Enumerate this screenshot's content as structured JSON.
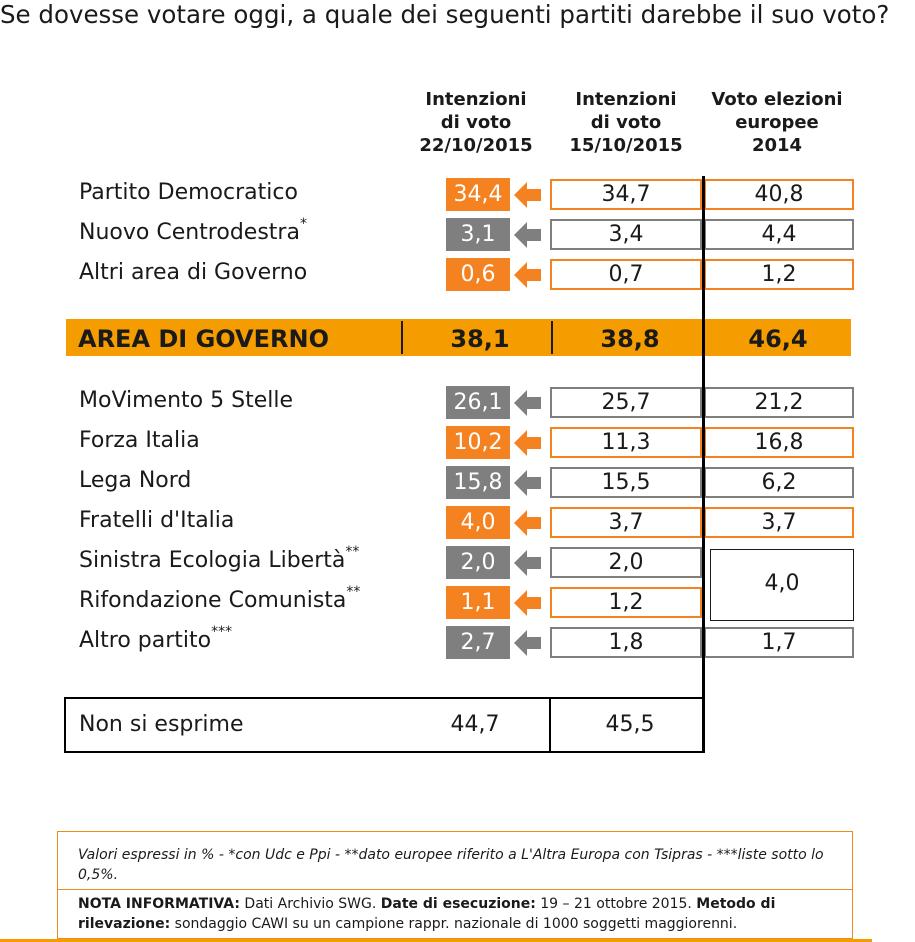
{
  "title": "Se dovesse votare oggi, a quale dei seguenti partiti darebbe il suo voto?",
  "headers": {
    "col1": [
      "Intenzioni",
      "di voto",
      "22/10/2015"
    ],
    "col2": [
      "Intenzioni",
      "di voto",
      "15/10/2015"
    ],
    "col3": [
      "Voto elezioni",
      "europee",
      "2014"
    ]
  },
  "colors": {
    "orange": "#f58220",
    "gray": "#7f7f7f",
    "band": "#f59c00"
  },
  "chart_data": {
    "type": "table",
    "columns": [
      "Intenzioni di voto 22/10/2015",
      "Intenzioni di voto 15/10/2015",
      "Voto elezioni europee 2014"
    ],
    "rows": [
      {
        "party": "Partito Democratico",
        "sup": "",
        "current": "34,4",
        "previous": "34,7",
        "europee": "40,8",
        "trend": "down"
      },
      {
        "party": "Nuovo Centrodestra",
        "sup": "*",
        "current": "3,1",
        "previous": "3,4",
        "europee": "4,4",
        "trend": "same"
      },
      {
        "party": "Altri area di Governo",
        "sup": "",
        "current": "0,6",
        "previous": "0,7",
        "europee": "1,2",
        "trend": "down"
      },
      {
        "party": "MoVimento 5 Stelle",
        "sup": "",
        "current": "26,1",
        "previous": "25,7",
        "europee": "21,2",
        "trend": "same"
      },
      {
        "party": "Forza Italia",
        "sup": "",
        "current": "10,2",
        "previous": "11,3",
        "europee": "16,8",
        "trend": "down"
      },
      {
        "party": "Lega Nord",
        "sup": "",
        "current": "15,8",
        "previous": "15,5",
        "europee": "6,2",
        "trend": "same"
      },
      {
        "party": "Fratelli d'Italia",
        "sup": "",
        "current": "4,0",
        "previous": "3,7",
        "europee": "3,7",
        "trend": "up"
      },
      {
        "party": "Sinistra Ecologia Libertà",
        "sup": "**",
        "current": "2,0",
        "previous": "2,0",
        "europee": "4,0",
        "trend": "same"
      },
      {
        "party": "Rifondazione Comunista",
        "sup": "**",
        "current": "1,1",
        "previous": "1,2",
        "europee": "",
        "trend": "down"
      },
      {
        "party": "Altro partito",
        "sup": "***",
        "current": "2,7",
        "previous": "1,8",
        "europee": "1,7",
        "trend": "same"
      }
    ],
    "area_governo": {
      "label": "AREA DI GOVERNO",
      "current": "38,1",
      "previous": "38,8",
      "europee": "46,4"
    },
    "non_si_esprime": {
      "label": "Non si esprime",
      "current": "44,7",
      "previous": "45,5"
    }
  },
  "footer": {
    "note": "Valori espressi in % - *con Udc e Ppi  - **dato europee riferito a L'Altra Europa con Tsipras - ***liste sotto lo 0,5%.",
    "info_label1": "NOTA INFORMATIVA:",
    "info_text1": " Dati Archivio SWG. ",
    "info_label2": "Date di esecuzione:",
    "info_text2": " 19 – 21 ottobre 2015. ",
    "info_label3": "Metodo di rilevazione:",
    "info_text3": " sondaggio CAWI su un campione rappr. nazionale di 1000 soggetti maggiorenni."
  }
}
